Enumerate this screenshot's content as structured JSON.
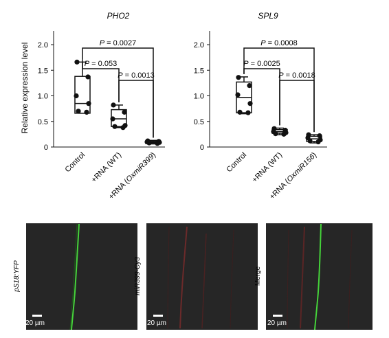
{
  "figure": {
    "ylabel": "Relative expression level",
    "micrographs": [
      {
        "label": "pS18:YFP",
        "scale_bar": "20 µm"
      },
      {
        "label": "miR399-Cy3",
        "scale_bar": "20 µm"
      },
      {
        "label": "Merge",
        "scale_bar": "20 µm"
      }
    ]
  },
  "chart_data": [
    {
      "type": "box",
      "title": "PHO2",
      "ylabel": "Relative expression level",
      "ylim": [
        0,
        2.0
      ],
      "yticks": [
        "0",
        "0.5",
        "1.0",
        "1.5",
        "2.0"
      ],
      "categories": [
        "Control",
        "+RNA (WT)",
        "+RNA (OxmiR399)"
      ],
      "points": [
        [
          1.66,
          1.37,
          1.0,
          0.85,
          0.7,
          0.68
        ],
        [
          0.82,
          0.68,
          0.55,
          0.42,
          0.4,
          0.38
        ],
        [
          0.12,
          0.11,
          0.1,
          0.09,
          0.08,
          0.07
        ]
      ],
      "boxes": [
        {
          "min": 0.66,
          "q1": 0.66,
          "median": 0.85,
          "q3": 1.38,
          "max": 1.66
        },
        {
          "min": 0.38,
          "q1": 0.4,
          "median": 0.55,
          "q3": 0.73,
          "max": 0.82
        },
        {
          "min": 0.06,
          "q1": 0.07,
          "median": 0.09,
          "q3": 0.11,
          "max": 0.13
        }
      ],
      "comparisons": [
        {
          "from": 0,
          "to": 1,
          "label": "P = 0.053"
        },
        {
          "from": 1,
          "to": 2,
          "label": "P = 0.0013"
        },
        {
          "from": 0,
          "to": 2,
          "label": "P = 0.0027"
        }
      ]
    },
    {
      "type": "box",
      "title": "SPL9",
      "ylim": [
        0,
        2.0
      ],
      "yticks": [
        "0",
        "0.5",
        "1.0",
        "1.5",
        "2.0"
      ],
      "categories": [
        "Control",
        "+RNA (WT)",
        "+RNA (OxmiR156)"
      ],
      "points": [
        [
          1.36,
          1.2,
          1.02,
          0.85,
          0.68,
          0.67
        ],
        [
          0.36,
          0.33,
          0.3,
          0.28,
          0.26,
          0.25
        ],
        [
          0.24,
          0.22,
          0.18,
          0.14,
          0.12,
          0.1
        ]
      ],
      "boxes": [
        {
          "min": 0.65,
          "q1": 0.67,
          "median": 0.97,
          "q3": 1.27,
          "max": 1.37
        },
        {
          "min": 0.24,
          "q1": 0.27,
          "median": 0.3,
          "q3": 0.34,
          "max": 0.37
        },
        {
          "min": 0.08,
          "q1": 0.11,
          "median": 0.16,
          "q3": 0.21,
          "max": 0.24
        }
      ],
      "comparisons": [
        {
          "from": 0,
          "to": 1,
          "label": "P = 0.0025"
        },
        {
          "from": 1,
          "to": 2,
          "label": "P = 0.0018"
        },
        {
          "from": 0,
          "to": 2,
          "label": "P = 0.0008"
        }
      ]
    }
  ]
}
